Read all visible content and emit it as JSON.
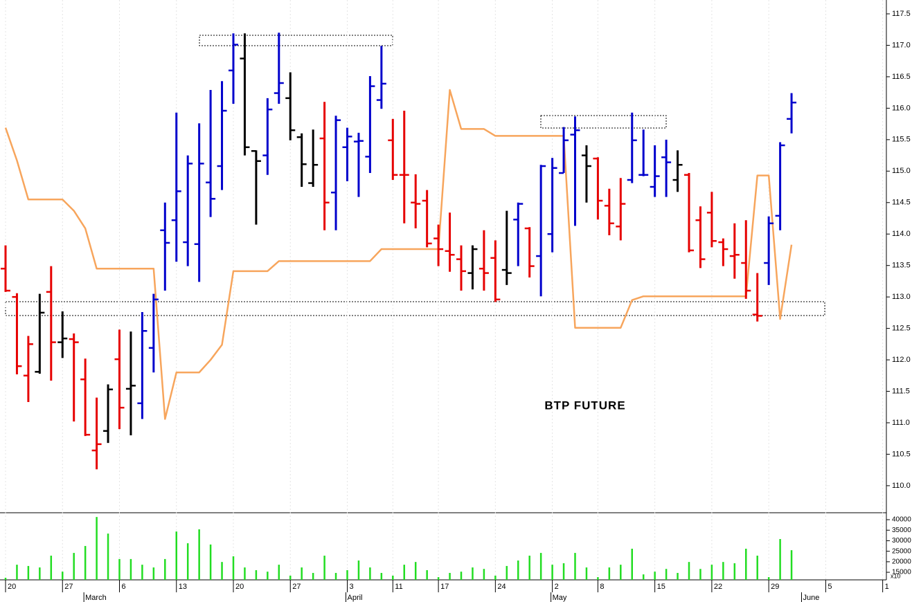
{
  "chart_data": {
    "type": "ohlc",
    "annotation": "BTP FUTURE",
    "categories": [
      "20",
      null,
      null,
      null,
      null,
      "27",
      null,
      null,
      null,
      null,
      "6",
      null,
      null,
      null,
      null,
      "13",
      null,
      null,
      null,
      null,
      "20",
      null,
      null,
      null,
      null,
      "27",
      null,
      null,
      null,
      null,
      "3",
      null,
      null,
      null,
      "11",
      null,
      null,
      null,
      "17",
      null,
      null,
      null,
      null,
      "24",
      null,
      null,
      null,
      null,
      "2",
      null,
      null,
      null,
      "8",
      null,
      null,
      null,
      null,
      "15",
      null,
      null,
      null,
      null,
      "22",
      null,
      null,
      null,
      null,
      "29",
      null,
      null,
      null,
      null,
      "5",
      null,
      null,
      null,
      null,
      "1"
    ],
    "months": [
      null,
      null,
      null,
      null,
      null,
      null,
      null,
      "March",
      null,
      null,
      null,
      null,
      null,
      null,
      null,
      null,
      null,
      null,
      null,
      null,
      null,
      null,
      null,
      null,
      null,
      null,
      null,
      null,
      null,
      null,
      "April",
      null,
      null,
      null,
      null,
      null,
      null,
      null,
      null,
      null,
      null,
      null,
      null,
      null,
      null,
      null,
      null,
      null,
      "May",
      null,
      null,
      null,
      null,
      null,
      null,
      null,
      null,
      null,
      null,
      null,
      null,
      null,
      null,
      null,
      null,
      null,
      null,
      null,
      null,
      null,
      "June",
      null,
      null,
      null,
      null,
      null,
      null,
      null
    ],
    "open": [
      113.45,
      113.0,
      111.75,
      111.81,
      113.08,
      112.28,
      112.33,
      111.69,
      110.56,
      110.87,
      112.01,
      111.54,
      111.31,
      112.19,
      114.06,
      114.22,
      113.87,
      113.84,
      114.82,
      115.08,
      116.6,
      116.79,
      115.32,
      115.25,
      116.24,
      116.16,
      115.54,
      114.81,
      115.52,
      114.66,
      115.38,
      115.47,
      115.23,
      116.13,
      115.49,
      114.94,
      114.5,
      114.53,
      113.93,
      113.73,
      113.6,
      113.38,
      113.45,
      113.62,
      113.43,
      114.23,
      114.09,
      113.65,
      114.0,
      114.97,
      115.58,
      115.25,
      115.2,
      114.45,
      114.12,
      114.86,
      114.94,
      114.75,
      115.22,
      114.86,
      114.94,
      114.22,
      114.34,
      113.87,
      113.65,
      113.54,
      112.72,
      113.54,
      114.29,
      115.83,
      null,
      null,
      null,
      null,
      null,
      null,
      null,
      null
    ],
    "high": [
      113.82,
      113.06,
      112.38,
      113.05,
      113.49,
      112.77,
      112.42,
      112.02,
      111.4,
      111.61,
      112.48,
      112.45,
      112.76,
      113.05,
      114.5,
      115.93,
      115.25,
      115.76,
      116.29,
      116.43,
      117.19,
      117.19,
      115.33,
      116.16,
      117.2,
      116.57,
      115.6,
      115.66,
      116.1,
      115.88,
      115.69,
      115.61,
      116.51,
      116.99,
      115.83,
      115.96,
      114.95,
      114.7,
      114.15,
      114.34,
      113.82,
      113.82,
      114.06,
      113.9,
      114.37,
      114.5,
      114.11,
      115.1,
      115.21,
      115.7,
      115.87,
      115.41,
      115.22,
      114.72,
      114.89,
      115.93,
      115.66,
      115.41,
      115.5,
      115.33,
      114.97,
      114.44,
      114.67,
      113.93,
      114.17,
      114.22,
      113.38,
      114.28,
      115.46,
      116.24,
      null,
      null,
      null,
      null,
      null,
      null,
      null,
      null
    ],
    "low": [
      113.08,
      111.77,
      111.33,
      111.78,
      111.67,
      112.03,
      111.02,
      110.79,
      110.26,
      110.68,
      110.9,
      110.8,
      111.06,
      111.8,
      113.1,
      113.56,
      113.49,
      113.24,
      114.27,
      114.7,
      116.07,
      115.25,
      114.15,
      114.94,
      116.07,
      115.49,
      114.75,
      114.75,
      114.06,
      114.06,
      114.84,
      114.59,
      114.97,
      115.99,
      114.86,
      114.17,
      114.09,
      113.79,
      113.49,
      113.4,
      113.1,
      113.12,
      113.1,
      112.92,
      113.19,
      113.49,
      113.31,
      113.01,
      113.71,
      114.97,
      114.13,
      114.5,
      114.23,
      113.98,
      113.9,
      114.81,
      114.92,
      114.59,
      114.59,
      114.67,
      113.71,
      113.46,
      113.79,
      113.49,
      113.29,
      112.97,
      112.61,
      113.19,
      114.06,
      115.6,
      null,
      null,
      null,
      null,
      null,
      null,
      null,
      null
    ],
    "close": [
      113.1,
      111.9,
      112.25,
      112.75,
      112.28,
      112.34,
      112.28,
      110.81,
      110.66,
      111.53,
      111.24,
      111.59,
      112.46,
      112.96,
      113.86,
      114.68,
      115.12,
      115.12,
      114.56,
      115.96,
      117.01,
      115.38,
      115.16,
      115.98,
      116.4,
      115.65,
      115.11,
      115.1,
      114.5,
      115.81,
      115.55,
      115.48,
      116.35,
      116.39,
      114.94,
      114.94,
      114.48,
      113.85,
      113.76,
      113.67,
      113.41,
      113.76,
      113.38,
      112.96,
      113.38,
      114.48,
      113.49,
      115.08,
      115.05,
      115.49,
      115.65,
      115.08,
      114.53,
      114.17,
      114.48,
      115.49,
      114.94,
      114.92,
      115.14,
      115.1,
      113.74,
      113.6,
      113.89,
      113.76,
      113.67,
      113.1,
      112.7,
      114.17,
      115.41,
      116.09,
      null,
      null,
      null,
      null,
      null,
      null,
      null,
      null
    ],
    "bar_colors": [
      "#e60000",
      "#e60000",
      "#e60000",
      "#000000",
      "#e60000",
      "#000000",
      "#e60000",
      "#e60000",
      "#e60000",
      "#000000",
      "#e60000",
      "#000000",
      "#0000cc",
      "#0000cc",
      "#0000cc",
      "#0000cc",
      "#0000cc",
      "#0000cc",
      "#0000cc",
      "#0000cc",
      "#0000cc",
      "#000000",
      "#000000",
      "#0000cc",
      "#0000cc",
      "#000000",
      "#000000",
      "#000000",
      "#e60000",
      "#0000cc",
      "#0000cc",
      "#0000cc",
      "#0000cc",
      "#0000cc",
      "#e60000",
      "#e60000",
      "#e60000",
      "#e60000",
      "#e60000",
      "#e60000",
      "#e60000",
      "#000000",
      "#e60000",
      "#e60000",
      "#000000",
      "#0000cc",
      "#e60000",
      "#0000cc",
      "#0000cc",
      "#0000cc",
      "#0000cc",
      "#000000",
      "#e60000",
      "#e60000",
      "#e60000",
      "#0000cc",
      "#0000cc",
      "#0000cc",
      "#0000cc",
      "#000000",
      "#e60000",
      "#e60000",
      "#e60000",
      "#e60000",
      "#e60000",
      "#e60000",
      "#e60000",
      "#0000cc",
      "#0000cc",
      "#0000cc",
      null,
      null,
      null,
      null,
      null,
      null,
      null,
      null
    ],
    "line": {
      "color": "#f7a55c",
      "values": [
        115.69,
        115.17,
        114.55,
        114.55,
        114.55,
        114.55,
        114.37,
        114.09,
        113.45,
        113.45,
        113.45,
        113.45,
        113.45,
        113.45,
        111.06,
        111.8,
        111.8,
        111.8,
        112.0,
        112.24,
        113.41,
        113.41,
        113.41,
        113.41,
        113.57,
        113.57,
        113.57,
        113.57,
        113.57,
        113.57,
        113.57,
        113.57,
        113.57,
        113.76,
        113.76,
        113.76,
        113.76,
        113.76,
        113.76,
        116.29,
        115.67,
        115.67,
        115.67,
        115.56,
        115.56,
        115.56,
        115.56,
        115.56,
        115.56,
        115.56,
        112.51,
        112.51,
        112.51,
        112.51,
        112.51,
        112.95,
        113.01,
        113.01,
        113.01,
        113.01,
        113.01,
        113.01,
        113.01,
        113.01,
        113.01,
        113.01,
        114.93,
        114.93,
        112.65,
        113.83,
        null,
        null,
        null,
        null,
        null,
        null,
        null,
        null
      ]
    },
    "ylim": [
      109.57,
      117.72
    ],
    "yticks": [
      {
        "value": 110,
        "label": "110.0"
      },
      110.5,
      {
        "value": 111,
        "label": "111.0"
      },
      111.5,
      {
        "value": 112,
        "label": "112.0"
      },
      112.5,
      {
        "value": 113,
        "label": "113.0"
      },
      113.5,
      {
        "value": 114,
        "label": "114.0"
      },
      114.5,
      {
        "value": 115,
        "label": "115.0"
      },
      115.5,
      {
        "value": 116,
        "label": "116.0"
      },
      116.5,
      {
        "value": 117,
        "label": "117.0"
      },
      117.5
    ],
    "volume": {
      "color": "#22dd22",
      "note": "x10",
      "values": [
        12400,
        18600,
        18000,
        17300,
        22900,
        15300,
        24200,
        27500,
        41300,
        33400,
        21300,
        21300,
        18600,
        17300,
        21300,
        34400,
        28800,
        35400,
        28200,
        19900,
        22600,
        17300,
        16000,
        15300,
        18600,
        13400,
        17300,
        14700,
        22900,
        14700,
        16000,
        20600,
        17300,
        14700,
        13400,
        18600,
        19900,
        16000,
        12700,
        14700,
        15300,
        17300,
        16600,
        13400,
        18000,
        20600,
        22900,
        24200,
        18600,
        19300,
        24200,
        17300,
        12700,
        17300,
        18600,
        26200,
        14000,
        15300,
        16600,
        14700,
        19900,
        16600,
        18600,
        19900,
        19300,
        26200,
        22900,
        12700,
        30800,
        25500,
        null,
        null,
        null,
        null,
        null,
        null,
        null,
        null
      ],
      "ylim": [
        11400,
        43300
      ],
      "yticks": [
        15000,
        20000,
        25000,
        30000,
        35000,
        40000
      ]
    }
  }
}
